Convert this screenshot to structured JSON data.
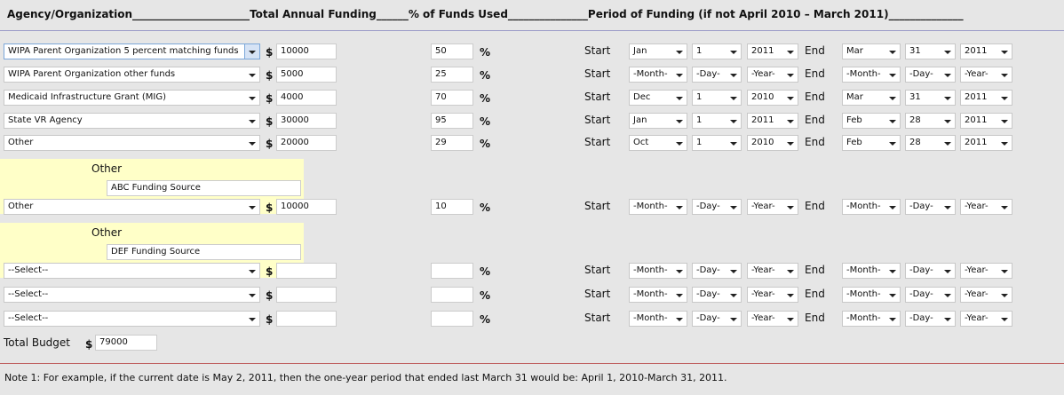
{
  "header": {
    "agency": "Agency/Organization______________________",
    "funding": "Total Annual Funding______",
    "pct": "% of Funds Used_______________",
    "period": "Period of Funding (if not April 2010 – March 2011)______________"
  },
  "labels": {
    "currency": "$",
    "percent": "%",
    "start": "Start",
    "end": "End",
    "other": "Other"
  },
  "rows": [
    {
      "agency": "WIPA Parent Organization 5 percent matching funds",
      "funding": "10000",
      "pct": "50",
      "start": [
        "Jan",
        "1",
        "2011"
      ],
      "end": [
        "Mar",
        "31",
        "2011"
      ],
      "focused": true
    },
    {
      "agency": "WIPA Parent Organization other funds",
      "funding": "5000",
      "pct": "25",
      "start": [
        "-Month-",
        "-Day-",
        "-Year-"
      ],
      "end": [
        "-Month-",
        "-Day-",
        "-Year-"
      ]
    },
    {
      "agency": "Medicaid Infrastructure Grant (MIG)",
      "funding": "4000",
      "pct": "70",
      "start": [
        "Dec",
        "1",
        "2010"
      ],
      "end": [
        "Mar",
        "31",
        "2011"
      ]
    },
    {
      "agency": "State VR Agency",
      "funding": "30000",
      "pct": "95",
      "start": [
        "Jan",
        "1",
        "2011"
      ],
      "end": [
        "Feb",
        "28",
        "2011"
      ]
    },
    {
      "agency": "Other",
      "funding": "20000",
      "pct": "29",
      "start": [
        "Oct",
        "1",
        "2010"
      ],
      "end": [
        "Feb",
        "28",
        "2011"
      ],
      "other": "ABC Funding Source"
    },
    {
      "agency": "Other",
      "funding": "10000",
      "pct": "10",
      "start": [
        "-Month-",
        "-Day-",
        "-Year-"
      ],
      "end": [
        "-Month-",
        "-Day-",
        "-Year-"
      ],
      "other": "DEF Funding Source"
    },
    {
      "agency": "--Select--",
      "funding": "",
      "pct": "",
      "start": [
        "-Month-",
        "-Day-",
        "-Year-"
      ],
      "end": [
        "-Month-",
        "-Day-",
        "-Year-"
      ]
    },
    {
      "agency": "--Select--",
      "funding": "",
      "pct": "",
      "start": [
        "-Month-",
        "-Day-",
        "-Year-"
      ],
      "end": [
        "-Month-",
        "-Day-",
        "-Year-"
      ]
    },
    {
      "agency": "--Select--",
      "funding": "",
      "pct": "",
      "start": [
        "-Month-",
        "-Day-",
        "-Year-"
      ],
      "end": [
        "-Month-",
        "-Day-",
        "-Year-"
      ]
    }
  ],
  "total": {
    "label": "Total Budget",
    "value": "79000"
  },
  "note": "Note 1: For example, if the current date is May 2, 2011, then the one-year period that ended last March 31 would be: April 1, 2010-March 31, 2011."
}
